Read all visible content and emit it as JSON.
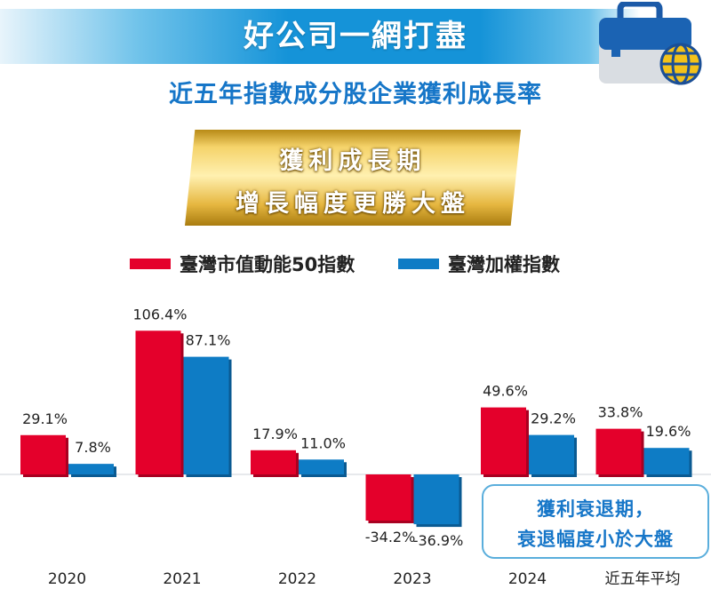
{
  "header": {
    "title": "好公司一網打盡",
    "subtitle": "近五年指數成分股企業獲利成長率",
    "highlight_lines": [
      "獲利成長期",
      "增長幅度更勝大盤"
    ]
  },
  "note": {
    "lines": [
      "獲利衰退期，",
      "衰退幅度小於大盤"
    ]
  },
  "colors": {
    "accent_blue": "#1593d8",
    "series_red": "#e4002b",
    "series_blue": "#0e7cc5",
    "gold": "#e6b740"
  },
  "icon": "briefcase-globe-icon",
  "chart_data": {
    "type": "bar",
    "categories": [
      "2020",
      "2021",
      "2022",
      "2023",
      "2024",
      "近五年平均"
    ],
    "series": [
      {
        "name": "臺灣市值動能50指數",
        "values": [
          29.1,
          106.4,
          17.9,
          -34.2,
          49.6,
          33.8
        ],
        "labels": [
          "29.1%",
          "106.4%",
          "17.9%",
          "-34.2%",
          "49.6%",
          "33.8%"
        ],
        "color": "#e4002b"
      },
      {
        "name": "臺灣加權指數",
        "values": [
          7.8,
          87.1,
          11.0,
          -36.9,
          29.2,
          19.6
        ],
        "labels": [
          "7.8%",
          "87.1%",
          "11.0%",
          "-36.9%",
          "29.2%",
          "19.6%"
        ],
        "color": "#0e7cc5"
      }
    ],
    "legend": "top-center",
    "grid": false,
    "ylim": [
      -45,
      115
    ]
  }
}
